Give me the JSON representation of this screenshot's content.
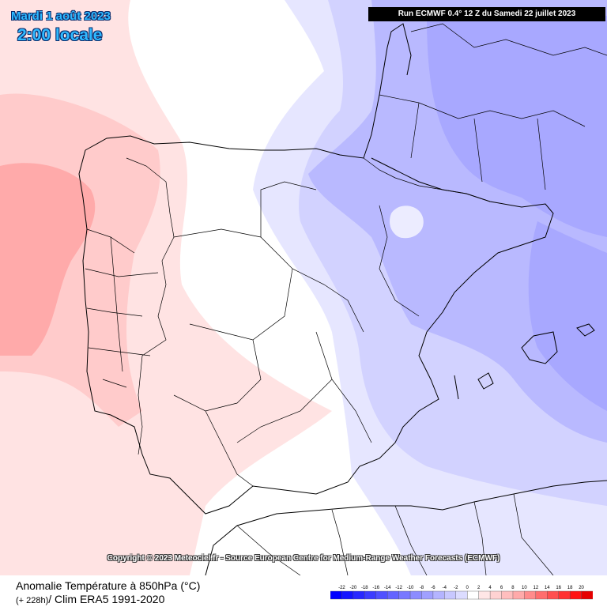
{
  "header": {
    "date": "Mardi 1 août 2023",
    "time": "2:00 locale",
    "run_info": "Run ECMWF 0.4° 12 Z du Samedi 22 juillet 2023"
  },
  "copyright": "Copyright © 2023 Meteociel.fr - Source European Centre for Medium-Range Weather Forecasts (ECMWF)",
  "footer": {
    "parameter": "Anomalie Température à 850hPa (°C)",
    "lead": "(+ 228h)",
    "clim": "/ Clim ERA5 1991-2020"
  },
  "legend": {
    "ticks": [
      "-22",
      "-20",
      "-18",
      "-16",
      "-14",
      "-12",
      "-10",
      "-8",
      "-6",
      "-4",
      "-2",
      "0",
      "2",
      "4",
      "6",
      "8",
      "10",
      "12",
      "14",
      "16",
      "18",
      "20"
    ],
    "colors": [
      "#0000ff",
      "#1414ff",
      "#2828ff",
      "#3c3cff",
      "#5050ff",
      "#6464ff",
      "#7878ff",
      "#8c8cff",
      "#a0a0ff",
      "#b4b4ff",
      "#c8c8ff",
      "#dcdcff",
      "#ffffff",
      "#ffe6e6",
      "#ffd2d2",
      "#ffbebe",
      "#ffaaaa",
      "#ff8c8c",
      "#ff6e6e",
      "#ff5050",
      "#ff3232",
      "#ff1414",
      "#e60000"
    ]
  },
  "map_colors": {
    "land_white": "#ffffff",
    "pink_light": "#ffe3e3",
    "pink_mid": "#ffcbcb",
    "pink_strong": "#ffaaaa",
    "blue_pale": "#e6e6ff",
    "blue_light": "#d2d2ff",
    "blue_mid": "#b9b9ff",
    "blue_strong": "#a8a8ff"
  }
}
